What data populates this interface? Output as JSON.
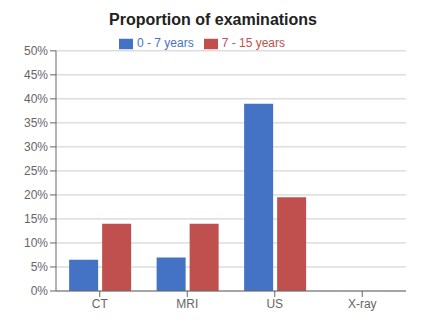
{
  "chart_data": {
    "type": "bar",
    "title": "Proportion of examinations",
    "categories": [
      "CT",
      "MRI",
      "US",
      "X-ray"
    ],
    "series": [
      {
        "name": "0 - 7 years",
        "color": "#4472C4",
        "values": [
          6.5,
          7.0,
          39.0,
          0.0
        ]
      },
      {
        "name": "7 - 15 years",
        "color": "#C0504D",
        "values": [
          14.0,
          14.0,
          19.5,
          0.0
        ]
      }
    ],
    "ylim": [
      0,
      50
    ],
    "yticks": [
      {
        "value": 0,
        "label": "0%"
      },
      {
        "value": 5,
        "label": "5%"
      },
      {
        "value": 10,
        "label": "10%"
      },
      {
        "value": 15,
        "label": "15%"
      },
      {
        "value": 20,
        "label": "20%"
      },
      {
        "value": 25,
        "label": "25%"
      },
      {
        "value": 30,
        "label": "30%"
      },
      {
        "value": 35,
        "label": "35%"
      },
      {
        "value": 40,
        "label": "40%"
      },
      {
        "value": 45,
        "label": "45%"
      },
      {
        "value": 50,
        "label": "50%"
      }
    ],
    "grid": true,
    "legend": "top"
  }
}
